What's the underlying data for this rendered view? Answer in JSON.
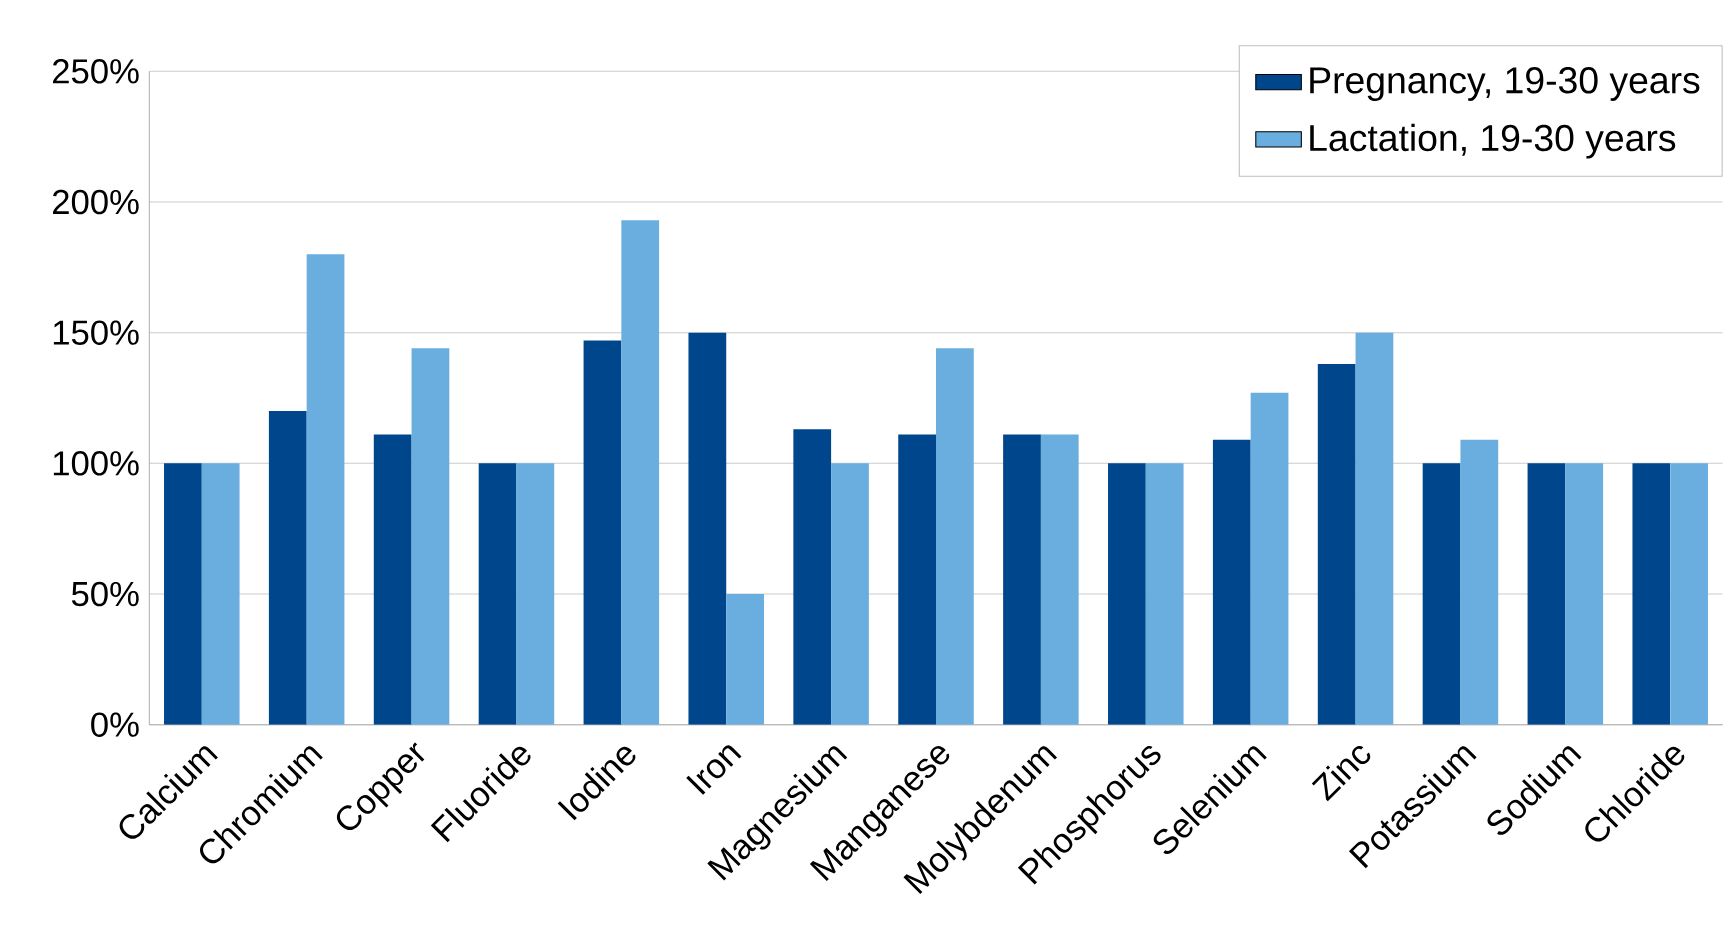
{
  "chart_data": {
    "type": "bar",
    "categories": [
      "Calcium",
      "Chromium",
      "Copper",
      "Fluoride",
      "Iodine",
      "Iron",
      "Magnesium",
      "Manganese",
      "Molybdenum",
      "Phosphorus",
      "Selenium",
      "Zinc",
      "Potassium",
      "Sodium",
      "Chloride"
    ],
    "series": [
      {
        "name": "Pregnancy, 19-30 years",
        "color": "#00468c",
        "values": [
          100,
          120,
          111,
          100,
          147,
          150,
          113,
          111,
          111,
          100,
          109,
          138,
          100,
          100,
          100
        ]
      },
      {
        "name": "Lactation, 19-30 years",
        "color": "#6aaee0",
        "values": [
          100,
          180,
          144,
          100,
          193,
          50,
          100,
          144,
          111,
          100,
          127,
          150,
          109,
          100,
          100
        ]
      }
    ],
    "ylim": [
      0,
      250
    ],
    "yticks": [
      {
        "value": 0,
        "label": "0%"
      },
      {
        "value": 50,
        "label": "50%"
      },
      {
        "value": 100,
        "label": "100%"
      },
      {
        "value": 150,
        "label": "150%"
      },
      {
        "value": 200,
        "label": "200%"
      },
      {
        "value": 250,
        "label": "250%"
      }
    ],
    "grid": "y",
    "legend": "top right"
  }
}
